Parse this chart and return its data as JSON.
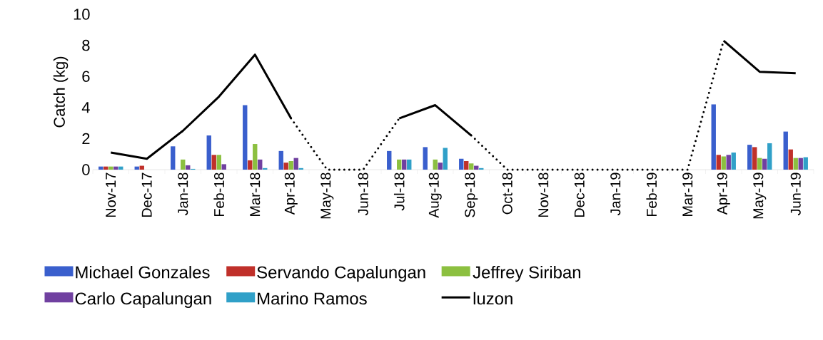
{
  "chart_data": {
    "type": "bar",
    "ylabel": "Catch (kg)",
    "categories": [
      "Nov-17",
      "Dec-17",
      "Jan-18",
      "Feb-18",
      "Mar-18",
      "Apr-18",
      "May-18",
      "Jun-18",
      "Jul-18",
      "Aug-18",
      "Sep-18",
      "Oct-18",
      "Nov-18",
      "Dec-18",
      "Jan-19",
      "Feb-19",
      "Mar-19",
      "Apr-19",
      "May-19",
      "Jun-19"
    ],
    "ylim": [
      0,
      10
    ],
    "yticks": [
      0,
      2,
      4,
      6,
      8,
      10
    ],
    "legend": "bottom",
    "series": [
      {
        "name": "Michael Gonzales",
        "color": "#3a5fcd",
        "values": [
          0.2,
          0.2,
          1.5,
          2.2,
          4.15,
          1.2,
          0,
          0,
          1.2,
          1.45,
          0.7,
          0,
          0,
          0,
          0,
          0,
          0,
          4.2,
          1.6,
          2.45
        ]
      },
      {
        "name": "Servando Capalungan",
        "color": "#c0302a",
        "values": [
          0.2,
          0.25,
          0,
          0.95,
          0.6,
          0.45,
          0,
          0,
          0,
          0,
          0.55,
          0,
          0,
          0,
          0,
          0,
          0,
          0.95,
          1.45,
          1.3
        ]
      },
      {
        "name": "Jeffrey Siriban",
        "color": "#8cc040",
        "values": [
          0.2,
          0,
          0.65,
          0.95,
          1.65,
          0.55,
          0,
          0,
          0.65,
          0.65,
          0.4,
          0,
          0,
          0,
          0,
          0,
          0,
          0.85,
          0.75,
          0.75
        ]
      },
      {
        "name": "Carlo Capalungan",
        "color": "#7040a0",
        "values": [
          0.2,
          0,
          0.28,
          0.35,
          0.65,
          0.75,
          0,
          0,
          0.65,
          0.45,
          0.25,
          0,
          0,
          0,
          0,
          0,
          0,
          0.95,
          0.7,
          0.75
        ]
      },
      {
        "name": "Marino Ramos",
        "color": "#30a0c8",
        "values": [
          0.2,
          0,
          0.05,
          0,
          0.1,
          0.1,
          0,
          0,
          0.65,
          1.4,
          0.1,
          0,
          0,
          0,
          0,
          0,
          0,
          1.1,
          1.7,
          0.8
        ]
      },
      {
        "name": "luzon",
        "type": "line",
        "color": "#000000",
        "line_style": "solid",
        "values": [
          1.1,
          0.7,
          2.5,
          4.7,
          7.4,
          3.3,
          null,
          null,
          3.3,
          4.15,
          2.2,
          null,
          null,
          null,
          null,
          null,
          null,
          8.3,
          6.3,
          6.2
        ]
      },
      {
        "type": "line",
        "color": "#000000",
        "line_style": "dotted",
        "values": [
          null,
          null,
          null,
          null,
          null,
          3.3,
          0,
          0,
          3.3,
          null,
          2.2,
          0,
          0,
          0,
          0,
          0,
          0,
          8.3,
          null,
          null
        ]
      }
    ]
  }
}
